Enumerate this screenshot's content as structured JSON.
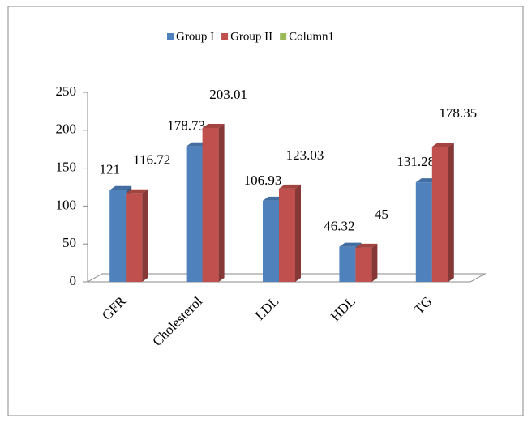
{
  "chart_data": {
    "type": "bar3d",
    "categories": [
      "GFR",
      "Cholesterol",
      "LDL",
      "HDL",
      "TG"
    ],
    "series": [
      {
        "name": "Group I",
        "color": "#4f81bd",
        "values": [
          121,
          178.73,
          106.93,
          46.32,
          131.28
        ]
      },
      {
        "name": "Group II",
        "color": "#c0504d",
        "values": [
          116.72,
          203.01,
          123.03,
          45,
          178.35
        ]
      },
      {
        "name": "Column1",
        "color": "#9bbb59",
        "values": [
          null,
          null,
          null,
          null,
          null
        ]
      }
    ],
    "ylim": [
      0,
      250
    ],
    "yticks": [
      0,
      50,
      100,
      150,
      200,
      250
    ],
    "legend": "top"
  }
}
